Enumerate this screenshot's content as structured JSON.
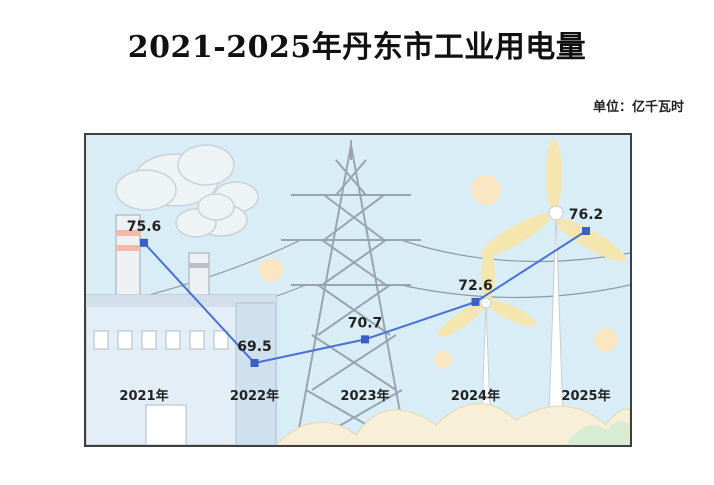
{
  "title": "2021-2025年丹东市工业用电量",
  "unit_label": "单位：亿千瓦时",
  "colors": {
    "line": "#4a70d6",
    "marker": "#3a5fcd",
    "sky": "#d9edf7",
    "sun": "#fbe6c4",
    "tower": "#b9c3cb",
    "turbine_blade": "#f5e6b0",
    "ground": "#f7efd8"
  },
  "chart_data": {
    "type": "line",
    "title": "2021-2025年丹东市工业用电量",
    "xlabel": "",
    "ylabel": "",
    "unit": "单位：亿千瓦时",
    "categories": [
      "2021年",
      "2022年",
      "2023年",
      "2024年",
      "2025年"
    ],
    "values": [
      75.6,
      69.5,
      70.7,
      72.6,
      76.2
    ],
    "ylim": [
      67,
      78
    ],
    "grid": false,
    "legend": "none"
  }
}
